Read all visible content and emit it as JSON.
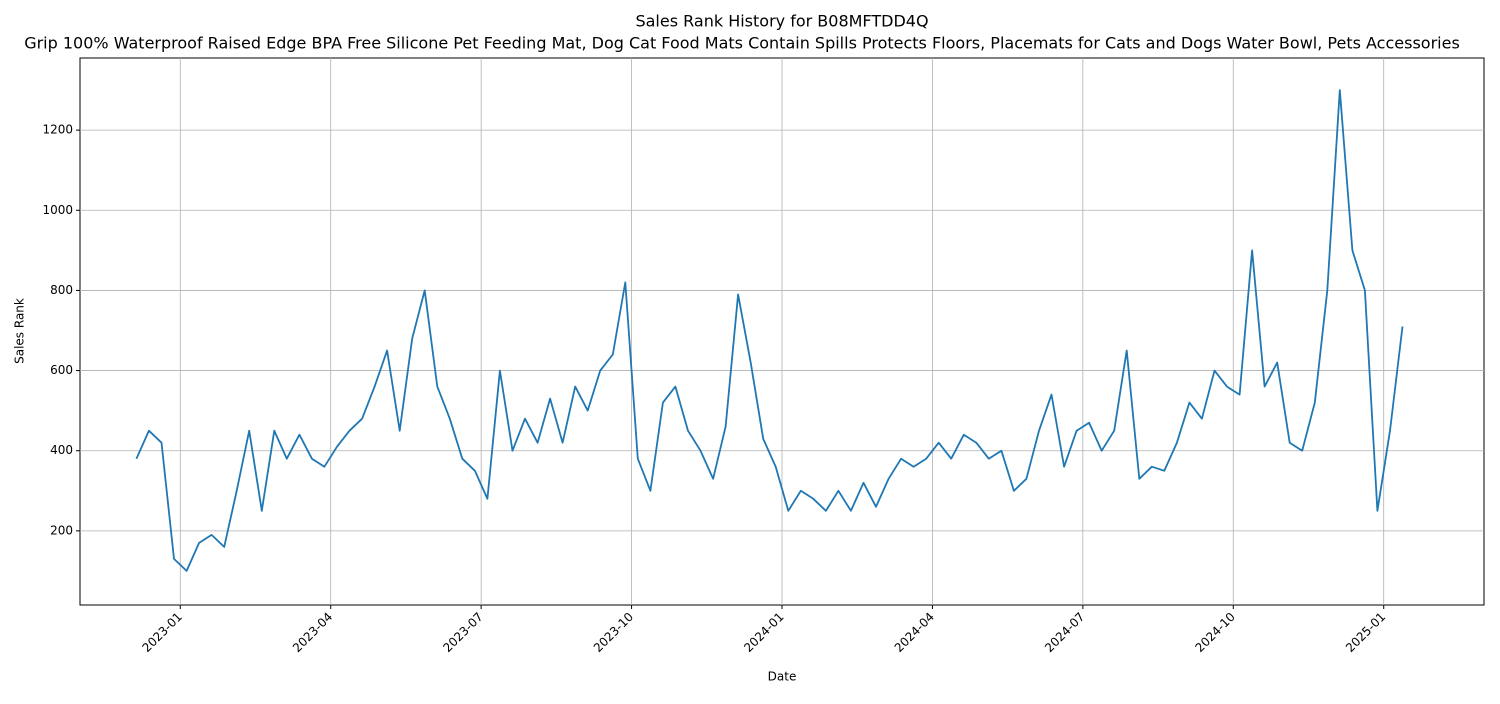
{
  "chart_data": {
    "type": "line",
    "title": "Sales Rank History for B08MFTDD4Q",
    "subtitle": "Grip 100% Waterproof Raised Edge BPA Free Silicone Pet Feeding Mat, Dog Cat Food Mats Contain Spills Protects Floors, Placemats for Cats and Dogs Water Bowl, Pets Accessories",
    "x_label": "Date",
    "y_label": "Sales Rank",
    "x": [
      "2022-12",
      "2022-12",
      "2022-12",
      "2022-12",
      "2023-01",
      "2023-01",
      "2023-01",
      "2023-01",
      "2023-02",
      "2023-02",
      "2023-02",
      "2023-02",
      "2023-03",
      "2023-03",
      "2023-03",
      "2023-03",
      "2023-04",
      "2023-04",
      "2023-04",
      "2023-04",
      "2023-05",
      "2023-05",
      "2023-05",
      "2023-05",
      "2023-06",
      "2023-06",
      "2023-06",
      "2023-06",
      "2023-07",
      "2023-07",
      "2023-07",
      "2023-07",
      "2023-08",
      "2023-08",
      "2023-08",
      "2023-08",
      "2023-09",
      "2023-09",
      "2023-09",
      "2023-09",
      "2023-10",
      "2023-10",
      "2023-10",
      "2023-10",
      "2023-11",
      "2023-11",
      "2023-11",
      "2023-11",
      "2023-12",
      "2023-12",
      "2023-12",
      "2023-12",
      "2024-01",
      "2024-01",
      "2024-01",
      "2024-01",
      "2024-02",
      "2024-02",
      "2024-02",
      "2024-02",
      "2024-03",
      "2024-03",
      "2024-03",
      "2024-03",
      "2024-04",
      "2024-04",
      "2024-04",
      "2024-04",
      "2024-05",
      "2024-05",
      "2024-05",
      "2024-05",
      "2024-06",
      "2024-06",
      "2024-06",
      "2024-06",
      "2024-07",
      "2024-07",
      "2024-07",
      "2024-07",
      "2024-08",
      "2024-08",
      "2024-08",
      "2024-08",
      "2024-09",
      "2024-09",
      "2024-09",
      "2024-09",
      "2024-10",
      "2024-10",
      "2024-10",
      "2024-10",
      "2024-11",
      "2024-11",
      "2024-11",
      "2024-11",
      "2024-12",
      "2024-12",
      "2024-12",
      "2024-12",
      "2025-01",
      "2025-01"
    ],
    "series": [
      {
        "name": "Sales Rank",
        "color": "#1f77b4",
        "values": [
          380,
          450,
          420,
          130,
          100,
          170,
          190,
          160,
          300,
          450,
          250,
          450,
          380,
          440,
          380,
          360,
          410,
          450,
          480,
          560,
          650,
          450,
          680,
          800,
          560,
          480,
          380,
          350,
          280,
          600,
          400,
          480,
          420,
          530,
          420,
          560,
          500,
          600,
          640,
          820,
          380,
          300,
          520,
          560,
          450,
          400,
          330,
          460,
          790,
          620,
          430,
          360,
          250,
          300,
          280,
          250,
          300,
          250,
          320,
          260,
          330,
          380,
          360,
          380,
          420,
          380,
          440,
          420,
          380,
          400,
          300,
          330,
          450,
          540,
          360,
          450,
          470,
          400,
          450,
          650,
          330,
          360,
          350,
          420,
          520,
          480,
          600,
          560,
          540,
          900,
          560,
          620,
          420,
          400,
          520,
          800,
          1300,
          900,
          800,
          250,
          450,
          710
        ]
      }
    ],
    "xlim": [
      "2022-11",
      "2025-03"
    ],
    "xticks": [
      "2023-01",
      "2023-04",
      "2023-07",
      "2023-10",
      "2024-01",
      "2024-04",
      "2024-07",
      "2024-10",
      "2025-01"
    ],
    "ylim": [
      15,
      1380
    ],
    "yticks": [
      200,
      400,
      600,
      800,
      1000,
      1200
    ],
    "grid": true
  }
}
